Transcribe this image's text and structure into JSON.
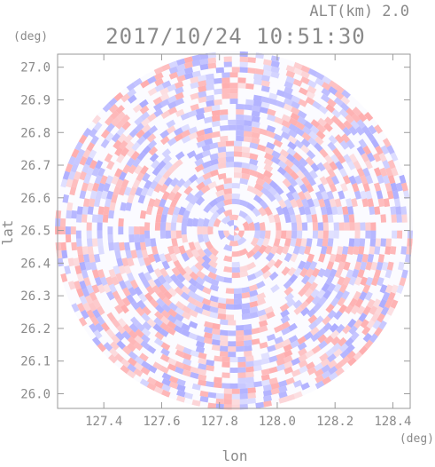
{
  "header": {
    "altitude": "ALT(km) 2.0",
    "timestamp": "2017/10/24 10:51:30"
  },
  "chart_data": {
    "type": "heatmap",
    "title": "2017/10/24 10:51:30",
    "subtitle": "ALT(km) 2.0",
    "xlabel": "lon",
    "ylabel": "lat",
    "x_unit": "(deg)",
    "y_unit": "(deg)",
    "xlim": [
      127.24,
      128.46
    ],
    "ylim": [
      25.955,
      27.04
    ],
    "x_ticks": [
      127.4,
      127.6,
      127.8,
      128.0,
      128.2,
      128.4
    ],
    "x_tick_labels": [
      "127.4",
      "127.6",
      "127.8",
      "128.0",
      "128.2",
      "128.4"
    ],
    "y_ticks": [
      26.0,
      26.1,
      26.2,
      26.3,
      26.4,
      26.5,
      26.6,
      26.7,
      26.8,
      26.9,
      27.0
    ],
    "y_tick_labels": [
      "26.0",
      "26.1",
      "26.2",
      "26.3",
      "26.4",
      "26.5",
      "26.6",
      "26.7",
      "26.8",
      "26.9",
      "27.0"
    ],
    "radar_center": [
      127.85,
      26.5
    ],
    "colormap": [
      "#9a9aff",
      "#ffffff",
      "#ff9a9a"
    ],
    "grid": false
  }
}
